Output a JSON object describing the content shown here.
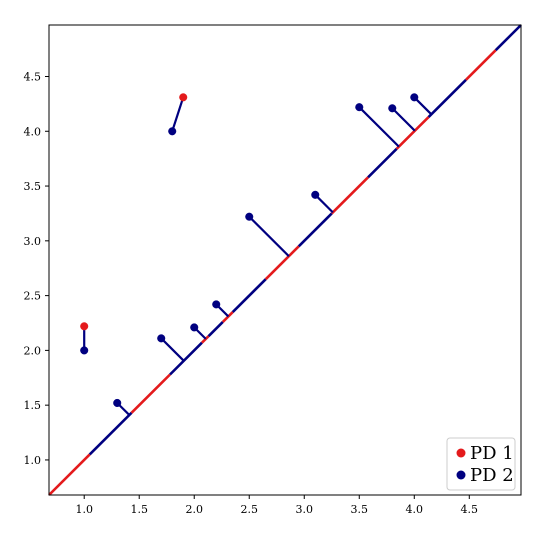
{
  "chart_data": {
    "type": "scatter",
    "title": "",
    "xlabel": "",
    "ylabel": "",
    "xlim": [
      0.68,
      4.97
    ],
    "ylim": [
      0.68,
      4.97
    ],
    "grid": false,
    "legend_placement": "bottom-right",
    "x_ticks": [
      {
        "value": 1.0,
        "label": "1.0"
      },
      {
        "value": 1.5,
        "label": "1.5"
      },
      {
        "value": 2.0,
        "label": "2.0"
      },
      {
        "value": 2.5,
        "label": "2.5"
      },
      {
        "value": 3.0,
        "label": "3.0"
      },
      {
        "value": 3.5,
        "label": "3.5"
      },
      {
        "value": 4.0,
        "label": "4.0"
      },
      {
        "value": 4.5,
        "label": "4.5"
      }
    ],
    "y_ticks": [
      {
        "value": 1.0,
        "label": "1.0"
      },
      {
        "value": 1.5,
        "label": "1.5"
      },
      {
        "value": 2.0,
        "label": "2.0"
      },
      {
        "value": 2.5,
        "label": "2.5"
      },
      {
        "value": 3.0,
        "label": "3.0"
      },
      {
        "value": 3.5,
        "label": "3.5"
      },
      {
        "value": 4.0,
        "label": "4.0"
      },
      {
        "value": 4.5,
        "label": "4.5"
      }
    ],
    "series": [
      {
        "name": "PD 1",
        "color": "#e41a1c",
        "points": [
          [
            1.0,
            2.22
          ],
          [
            1.9,
            4.31
          ]
        ]
      },
      {
        "name": "PD 2",
        "color": "#000080",
        "points": [
          [
            1.0,
            2.0
          ],
          [
            1.8,
            4.0
          ],
          [
            1.3,
            1.52
          ],
          [
            1.7,
            2.11
          ],
          [
            2.0,
            2.21
          ],
          [
            2.2,
            2.42
          ],
          [
            2.5,
            3.22
          ],
          [
            3.1,
            3.42
          ],
          [
            3.5,
            4.22
          ],
          [
            3.8,
            4.21
          ],
          [
            4.0,
            4.31
          ]
        ]
      }
    ],
    "matching": [
      {
        "from": [
          1.0,
          2.22
        ],
        "to": [
          1.0,
          2.0
        ]
      },
      {
        "from": [
          1.9,
          4.31
        ],
        "to": [
          1.8,
          4.0
        ]
      },
      {
        "from": [
          1.3,
          1.52
        ],
        "to": [
          1.41,
          1.41
        ]
      },
      {
        "from": [
          1.7,
          2.11
        ],
        "to": [
          1.905,
          1.905
        ]
      },
      {
        "from": [
          2.0,
          2.21
        ],
        "to": [
          2.105,
          2.105
        ]
      },
      {
        "from": [
          2.2,
          2.42
        ],
        "to": [
          2.31,
          2.31
        ]
      },
      {
        "from": [
          2.5,
          3.22
        ],
        "to": [
          2.86,
          2.86
        ]
      },
      {
        "from": [
          3.1,
          3.42
        ],
        "to": [
          3.26,
          3.26
        ]
      },
      {
        "from": [
          3.5,
          4.22
        ],
        "to": [
          3.86,
          3.86
        ]
      },
      {
        "from": [
          3.8,
          4.21
        ],
        "to": [
          4.005,
          4.005
        ]
      },
      {
        "from": [
          4.0,
          4.31
        ],
        "to": [
          4.155,
          4.155
        ]
      }
    ],
    "diagonal_segments": [
      {
        "from": 0.68,
        "to": 1.05,
        "color": "#e41a1c"
      },
      {
        "from": 1.05,
        "to": 1.43,
        "color": "#000080"
      },
      {
        "from": 1.43,
        "to": 1.78,
        "color": "#e41a1c"
      },
      {
        "from": 1.78,
        "to": 2.07,
        "color": "#000080"
      },
      {
        "from": 2.07,
        "to": 2.13,
        "color": "#e41a1c"
      },
      {
        "from": 2.13,
        "to": 2.26,
        "color": "#000080"
      },
      {
        "from": 2.26,
        "to": 2.35,
        "color": "#e41a1c"
      },
      {
        "from": 2.35,
        "to": 2.65,
        "color": "#000080"
      },
      {
        "from": 2.65,
        "to": 2.95,
        "color": "#e41a1c"
      },
      {
        "from": 2.95,
        "to": 3.25,
        "color": "#000080"
      },
      {
        "from": 3.25,
        "to": 3.58,
        "color": "#e41a1c"
      },
      {
        "from": 3.58,
        "to": 3.84,
        "color": "#000080"
      },
      {
        "from": 3.84,
        "to": 4.13,
        "color": "#e41a1c"
      },
      {
        "from": 4.13,
        "to": 4.47,
        "color": "#000080"
      },
      {
        "from": 4.47,
        "to": 4.74,
        "color": "#e41a1c"
      },
      {
        "from": 4.74,
        "to": 4.97,
        "color": "#000080"
      }
    ],
    "legend": [
      {
        "label": "PD 1",
        "color": "#e41a1c"
      },
      {
        "label": "PD 2",
        "color": "#000080"
      }
    ]
  }
}
